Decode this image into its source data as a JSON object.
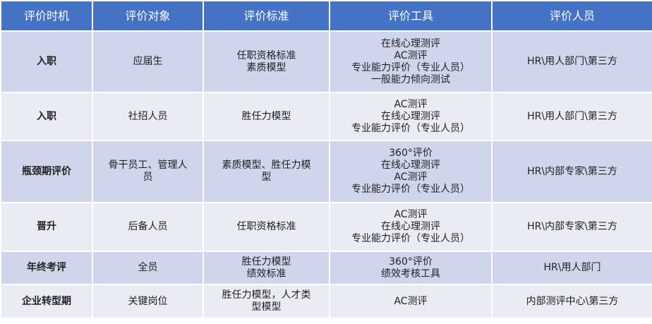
{
  "headers": [
    "评价时机",
    "评价对象",
    "评价标准",
    "评价工具",
    "评价人员"
  ],
  "rows": [
    {
      "timing": "入职",
      "target": [
        "应届生"
      ],
      "standard": [
        "任职资格标准",
        "素质模型"
      ],
      "tools": [
        "在线心理测评",
        "AC测评",
        "专业能力评价（专业人员）",
        "一般能力倾向测试"
      ],
      "assessors": "HR\\用人部门\\第三方"
    },
    {
      "timing": "入职",
      "target": [
        "社招人员"
      ],
      "standard": [
        "胜任力模型"
      ],
      "tools": [
        "AC测评",
        "在线心理测评",
        "专业能力评价（专业人员）"
      ],
      "assessors": "HR\\用人部门\\第三方"
    },
    {
      "timing": "瓶颈期评价",
      "target": [
        "骨干员工、管理人",
        "员"
      ],
      "standard": [
        "素质模型、胜任力模",
        "型"
      ],
      "tools": [
        "360°评价",
        "在线心理测评",
        "AC测评",
        "专业能力评价（专业人员）"
      ],
      "assessors": "HR\\内部专家\\第三方"
    },
    {
      "timing": "晋升",
      "target": [
        "后备人员"
      ],
      "standard": [
        "任职资格标准"
      ],
      "tools": [
        "AC测评",
        "在线心理测评",
        "专业能力评价（专业人员）"
      ],
      "assessors": "HR\\内部专家\\第三方"
    },
    {
      "timing": "年终考评",
      "target": [
        "全员"
      ],
      "standard": [
        "胜任力模型",
        "绩效标准"
      ],
      "tools": [
        "360°评价",
        "绩效考核工具"
      ],
      "assessors": "HR\\用人部门"
    },
    {
      "timing": "企业转型期",
      "target": [
        "关键岗位"
      ],
      "standard": [
        "胜任力模型，人才类",
        "型模型"
      ],
      "tools": [
        "AC测评"
      ],
      "assessors": "内部测评中心\\第三方"
    }
  ],
  "colors": {
    "header": "#4472C4",
    "row_odd": "#CFD5EA",
    "row_even": "#E9EBF5"
  }
}
